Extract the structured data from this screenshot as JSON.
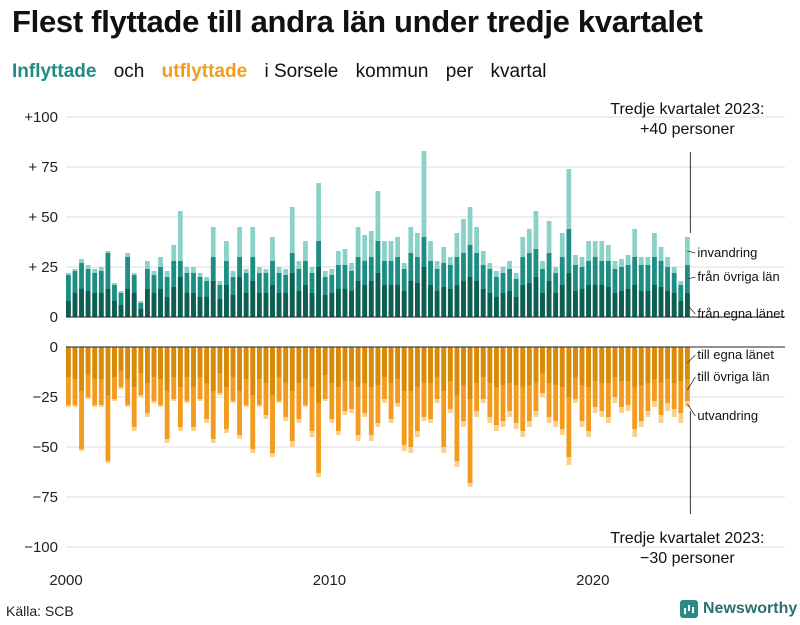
{
  "title": "Flest flyttade till andra län under tredje kvartalet",
  "subtitle": {
    "part1": "Inflyttade",
    "part2": "och",
    "part3": "utflyttade",
    "part4": "i Sorsele",
    "part5": "kommun",
    "part6": "per",
    "part7": "kvartal"
  },
  "source": "Källa: SCB",
  "brand": "Newsworthy",
  "colors": {
    "in_own": "#0f5e52",
    "in_other": "#1e8d83",
    "in_abroad": "#8ad1c8",
    "out_own": "#d98a06",
    "out_other": "#f29b1e",
    "out_abroad": "#f9d08d"
  },
  "chart_data": {
    "type": "bar",
    "stacked": true,
    "x_start_year": 2000,
    "quarters": 95,
    "ylim": [
      -100,
      100
    ],
    "y_ticks": [
      "+100",
      "+ 75",
      "+ 50",
      "+ 25",
      "0",
      "0",
      "−25",
      "−50",
      "−75",
      "−100"
    ],
    "x_ticks": [
      "2000",
      "2010",
      "2020"
    ],
    "annotations": {
      "top_line1": "Tredje kvartalet 2023:",
      "top_line2": "+40 personer",
      "bottom_line1": "Tredje kvartalet 2023:",
      "bottom_line2": "−30 personer"
    },
    "in_labels": [
      "invandring",
      "från övriga län",
      "från egna länet"
    ],
    "out_labels": [
      "till egna länet",
      "till övriga län",
      "utvandring"
    ],
    "in_totals": [
      22,
      24,
      29,
      26,
      24,
      25,
      33,
      17,
      13,
      32,
      22,
      8,
      28,
      23,
      30,
      23,
      36,
      53,
      25,
      25,
      22,
      20,
      45,
      18,
      38,
      23,
      45,
      24,
      45,
      25,
      24,
      40,
      25,
      24,
      55,
      28,
      38,
      25,
      67,
      23,
      24,
      33,
      34,
      27,
      45,
      41,
      43,
      63,
      38,
      38,
      40,
      27,
      45,
      42,
      83,
      38,
      28,
      35,
      30,
      42,
      49,
      55,
      45,
      33,
      27,
      23,
      25,
      28,
      22,
      40,
      44,
      53,
      28,
      48,
      25,
      42,
      74,
      31,
      30,
      38,
      38,
      38,
      36,
      28,
      29,
      31,
      44,
      30,
      30,
      42,
      35,
      30,
      25,
      18,
      40
    ],
    "in_own": [
      8,
      12,
      14,
      13,
      12,
      12,
      14,
      8,
      6,
      14,
      12,
      4,
      14,
      12,
      14,
      10,
      15,
      20,
      12,
      12,
      10,
      10,
      18,
      9,
      16,
      11,
      20,
      12,
      18,
      12,
      12,
      16,
      12,
      12,
      22,
      13,
      16,
      12,
      25,
      11,
      12,
      14,
      14,
      13,
      18,
      16,
      18,
      22,
      16,
      16,
      16,
      13,
      18,
      17,
      25,
      16,
      13,
      15,
      14,
      16,
      18,
      20,
      18,
      14,
      12,
      10,
      12,
      13,
      10,
      16,
      17,
      20,
      12,
      18,
      12,
      16,
      22,
      13,
      14,
      16,
      16,
      16,
      15,
      12,
      13,
      14,
      16,
      13,
      13,
      16,
      15,
      13,
      12,
      8,
      12
    ],
    "in_other": [
      21,
      23,
      27,
      24,
      22,
      23,
      32,
      16,
      12,
      30,
      21,
      7,
      24,
      21,
      25,
      20,
      28,
      28,
      22,
      22,
      20,
      18,
      30,
      16,
      28,
      20,
      30,
      22,
      30,
      22,
      22,
      28,
      22,
      21,
      32,
      24,
      28,
      22,
      38,
      20,
      21,
      26,
      26,
      23,
      30,
      28,
      30,
      38,
      28,
      28,
      30,
      24,
      32,
      30,
      40,
      28,
      24,
      27,
      26,
      30,
      32,
      36,
      32,
      26,
      24,
      20,
      22,
      24,
      19,
      30,
      32,
      34,
      24,
      32,
      22,
      30,
      44,
      26,
      25,
      28,
      30,
      28,
      28,
      24,
      25,
      26,
      30,
      26,
      26,
      30,
      28,
      25,
      22,
      16,
      26
    ],
    "out_totals": [
      30,
      30,
      52,
      26,
      30,
      30,
      58,
      27,
      21,
      30,
      42,
      25,
      35,
      28,
      30,
      48,
      27,
      42,
      28,
      42,
      27,
      38,
      48,
      24,
      43,
      28,
      46,
      30,
      53,
      30,
      36,
      55,
      28,
      37,
      50,
      38,
      30,
      45,
      65,
      27,
      38,
      44,
      34,
      33,
      47,
      35,
      47,
      40,
      28,
      38,
      30,
      52,
      53,
      45,
      37,
      38,
      28,
      53,
      33,
      60,
      40,
      70,
      35,
      28,
      38,
      42,
      40,
      35,
      41,
      45,
      40,
      35,
      25,
      38,
      40,
      44,
      59,
      28,
      40,
      45,
      33,
      35,
      38,
      28,
      33,
      32,
      45,
      40,
      35,
      30,
      38,
      32,
      35,
      38,
      30
    ],
    "out_own": [
      15,
      16,
      22,
      14,
      16,
      16,
      24,
      15,
      12,
      16,
      20,
      13,
      18,
      15,
      16,
      22,
      15,
      20,
      15,
      20,
      15,
      18,
      22,
      13,
      20,
      15,
      22,
      16,
      24,
      16,
      18,
      24,
      15,
      18,
      22,
      18,
      16,
      20,
      28,
      14,
      18,
      20,
      17,
      17,
      20,
      18,
      20,
      19,
      15,
      18,
      16,
      22,
      22,
      20,
      18,
      18,
      15,
      22,
      17,
      24,
      19,
      26,
      18,
      15,
      18,
      20,
      19,
      18,
      19,
      20,
      19,
      18,
      13,
      18,
      19,
      20,
      25,
      15,
      19,
      20,
      17,
      18,
      18,
      15,
      17,
      17,
      20,
      19,
      18,
      16,
      18,
      16,
      18,
      17,
      16
    ],
    "out_other": [
      29,
      29,
      51,
      25,
      29,
      29,
      57,
      26,
      20,
      29,
      40,
      24,
      33,
      27,
      29,
      46,
      26,
      40,
      27,
      40,
      26,
      36,
      46,
      23,
      41,
      27,
      44,
      29,
      51,
      29,
      34,
      53,
      27,
      35,
      47,
      36,
      29,
      42,
      63,
      26,
      36,
      42,
      32,
      31,
      44,
      33,
      44,
      38,
      26,
      36,
      28,
      49,
      50,
      42,
      35,
      36,
      26,
      50,
      31,
      57,
      37,
      68,
      32,
      26,
      35,
      39,
      37,
      32,
      38,
      42,
      37,
      32,
      23,
      35,
      37,
      41,
      55,
      26,
      37,
      42,
      30,
      32,
      35,
      25,
      30,
      29,
      41,
      37,
      32,
      27,
      34,
      28,
      31,
      33,
      27
    ]
  }
}
